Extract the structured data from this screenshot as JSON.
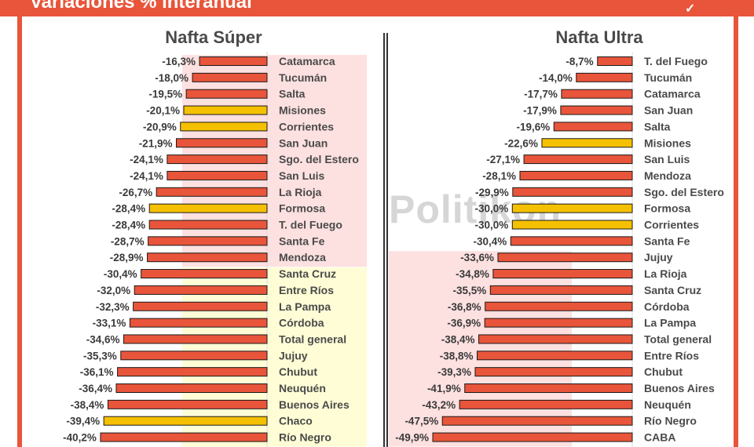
{
  "header": {
    "title": "Variaciones % interanual",
    "accent_color": "#e8553a"
  },
  "watermark": "Politikon",
  "colors": {
    "bar_default": "#e8553a",
    "bar_highlight": "#f5c000",
    "bar_stroke": "#1a1a1a",
    "band_pink": "#fde0e0",
    "band_yellow": "#fefdd6"
  },
  "chart_data": [
    {
      "type": "bar",
      "orientation": "horizontal",
      "title": "Nafta Súper",
      "xlim": [
        -55,
        0
      ],
      "categories": [
        "Catamarca",
        "Tucumán",
        "Salta",
        "Misiones",
        "Corrientes",
        "San Juan",
        "Sgo. del Estero",
        "San Luis",
        "La Rioja",
        "Formosa",
        "T. del Fuego",
        "Santa Fe",
        "Mendoza",
        "Santa Cruz",
        "Entre Ríos",
        "La Pampa",
        "Córdoba",
        "Total general",
        "Jujuy",
        "Chubut",
        "Neuquén",
        "Buenos Aires",
        "Chaco",
        "Río Negro"
      ],
      "values": [
        -16.3,
        -18.0,
        -19.5,
        -20.1,
        -20.9,
        -21.9,
        -24.1,
        -24.1,
        -26.7,
        -28.4,
        -28.4,
        -28.7,
        -28.9,
        -30.4,
        -32.0,
        -32.3,
        -33.1,
        -34.6,
        -35.3,
        -36.1,
        -36.4,
        -38.4,
        -39.4,
        -40.2
      ],
      "labels": [
        "-16,3%",
        "-18,0%",
        "-19,5%",
        "-20,1%",
        "-20,9%",
        "-21,9%",
        "-24,1%",
        "-24,1%",
        "-26,7%",
        "-28,4%",
        "-28,4%",
        "-28,7%",
        "-28,9%",
        "-30,4%",
        "-32,0%",
        "-32,3%",
        "-33,1%",
        "-34,6%",
        "-35,3%",
        "-36,1%",
        "-36,4%",
        "-38,4%",
        "-39,4%",
        "-40,2%"
      ],
      "highlighted": [
        "Misiones",
        "Corrientes",
        "Formosa",
        "Chaco"
      ],
      "bands": [
        {
          "from": "Catamarca",
          "to": "Mendoza",
          "color": "pink"
        },
        {
          "from": "Santa Cruz",
          "to": "Río Negro",
          "color": "yellow"
        }
      ]
    },
    {
      "type": "bar",
      "orientation": "horizontal",
      "title": "Nafta Ultra",
      "xlim": [
        -55,
        0
      ],
      "categories": [
        "T. del Fuego",
        "Tucumán",
        "Catamarca",
        "San Juan",
        "Salta",
        "Misiones",
        "San Luis",
        "Mendoza",
        "Sgo. del Estero",
        "Formosa",
        "Corrientes",
        "Santa Fe",
        "Jujuy",
        "La Rioja",
        "Santa Cruz",
        "Córdoba",
        "La Pampa",
        "Total general",
        "Entre Ríos",
        "Chubut",
        "Buenos Aires",
        "Neuquén",
        "Río Negro",
        "CABA"
      ],
      "values": [
        -8.7,
        -14.0,
        -17.7,
        -17.9,
        -19.6,
        -22.6,
        -27.1,
        -28.1,
        -29.9,
        -30.0,
        -30.0,
        -30.4,
        -33.6,
        -34.8,
        -35.5,
        -36.8,
        -36.9,
        -38.4,
        -38.8,
        -39.3,
        -41.9,
        -43.2,
        -47.5,
        -49.9
      ],
      "labels": [
        "-8,7%",
        "-14,0%",
        "-17,7%",
        "-17,9%",
        "-19,6%",
        "-22,6%",
        "-27,1%",
        "-28,1%",
        "-29,9%",
        "-30,0%",
        "-30,0%",
        "-30,4%",
        "-33,6%",
        "-34,8%",
        "-35,5%",
        "-36,8%",
        "-36,9%",
        "-38,4%",
        "-38,8%",
        "-39,3%",
        "-41,9%",
        "-43,2%",
        "-47,5%",
        "-49,9%"
      ],
      "highlighted": [
        "Misiones",
        "Formosa",
        "Corrientes"
      ],
      "bands": [
        {
          "from": "Jujuy",
          "to": "CABA",
          "color": "pink"
        }
      ]
    }
  ]
}
